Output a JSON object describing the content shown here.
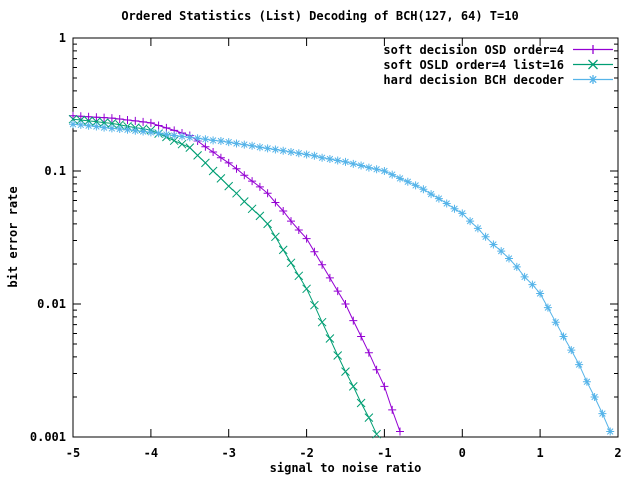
{
  "title": "Ordered Statistics (List) Decoding of BCH(127, 64) T=10",
  "colors": {
    "background": "#ffffff",
    "axis": "#000000",
    "osd": "#9400d3",
    "osld": "#009e73",
    "hard": "#56b4e9"
  },
  "chart_data": {
    "type": "line",
    "title": "Ordered Statistics (List) Decoding of BCH(127, 64) T=10",
    "xlabel": "signal to noise ratio",
    "ylabel": "bit error rate",
    "x_range": [
      -5,
      2
    ],
    "y_range": [
      0.001,
      1
    ],
    "y_scale": "log",
    "grid": false,
    "legend_position": "top-right",
    "x_ticks": {
      "values": [
        -5,
        -4,
        -3,
        -2,
        -1,
        0,
        1,
        2
      ],
      "labels": [
        "-5",
        "-4",
        "-3",
        "-2",
        "-1",
        "0",
        "1",
        "2"
      ]
    },
    "y_ticks": {
      "values": [
        1,
        0.1,
        0.01,
        0.001
      ],
      "labels": [
        "1",
        "0.1",
        "0.01",
        "0.001"
      ]
    },
    "series": [
      {
        "name": "soft decision OSD order=4",
        "color": "#9400d3",
        "marker": "plus",
        "points": [
          [
            -5.0,
            0.26
          ],
          [
            -4.9,
            0.258
          ],
          [
            -4.8,
            0.256
          ],
          [
            -4.7,
            0.254
          ],
          [
            -4.6,
            0.252
          ],
          [
            -4.5,
            0.25
          ],
          [
            -4.4,
            0.246
          ],
          [
            -4.3,
            0.242
          ],
          [
            -4.2,
            0.238
          ],
          [
            -4.1,
            0.234
          ],
          [
            -4.0,
            0.23
          ],
          [
            -3.9,
            0.22
          ],
          [
            -3.8,
            0.211
          ],
          [
            -3.7,
            0.202
          ],
          [
            -3.6,
            0.193
          ],
          [
            -3.5,
            0.185
          ],
          [
            -3.4,
            0.168
          ],
          [
            -3.3,
            0.152
          ],
          [
            -3.2,
            0.139
          ],
          [
            -3.1,
            0.126
          ],
          [
            -3.0,
            0.115
          ],
          [
            -2.9,
            0.104
          ],
          [
            -2.8,
            0.093
          ],
          [
            -2.7,
            0.084
          ],
          [
            -2.6,
            0.076
          ],
          [
            -2.5,
            0.068
          ],
          [
            -2.4,
            0.058
          ],
          [
            -2.3,
            0.05
          ],
          [
            -2.2,
            0.042
          ],
          [
            -2.1,
            0.036
          ],
          [
            -2.0,
            0.031
          ],
          [
            -1.9,
            0.0247
          ],
          [
            -1.8,
            0.0197
          ],
          [
            -1.7,
            0.0157
          ],
          [
            -1.6,
            0.0125
          ],
          [
            -1.5,
            0.01
          ],
          [
            -1.4,
            0.0075
          ],
          [
            -1.3,
            0.0057
          ],
          [
            -1.2,
            0.0043
          ],
          [
            -1.1,
            0.0032
          ],
          [
            -1.0,
            0.0024
          ],
          [
            -0.9,
            0.0016
          ],
          [
            -0.8,
            0.0011
          ]
        ]
      },
      {
        "name": "soft OSLD order=4 list=16",
        "color": "#009e73",
        "marker": "cross",
        "points": [
          [
            -5.0,
            0.245
          ],
          [
            -4.9,
            0.242
          ],
          [
            -4.8,
            0.238
          ],
          [
            -4.7,
            0.235
          ],
          [
            -4.6,
            0.231
          ],
          [
            -4.5,
            0.228
          ],
          [
            -4.4,
            0.223
          ],
          [
            -4.3,
            0.217
          ],
          [
            -4.2,
            0.212
          ],
          [
            -4.1,
            0.208
          ],
          [
            -4.0,
            0.203
          ],
          [
            -3.9,
            0.191
          ],
          [
            -3.8,
            0.18
          ],
          [
            -3.7,
            0.169
          ],
          [
            -3.6,
            0.159
          ],
          [
            -3.5,
            0.15
          ],
          [
            -3.4,
            0.131
          ],
          [
            -3.3,
            0.115
          ],
          [
            -3.2,
            0.1
          ],
          [
            -3.1,
            0.088
          ],
          [
            -3.0,
            0.077
          ],
          [
            -2.9,
            0.068
          ],
          [
            -2.8,
            0.059
          ],
          [
            -2.7,
            0.052
          ],
          [
            -2.6,
            0.046
          ],
          [
            -2.5,
            0.04
          ],
          [
            -2.4,
            0.032
          ],
          [
            -2.3,
            0.0255
          ],
          [
            -2.2,
            0.0204
          ],
          [
            -2.1,
            0.0163
          ],
          [
            -2.0,
            0.013
          ],
          [
            -1.9,
            0.0098
          ],
          [
            -1.8,
            0.0073
          ],
          [
            -1.7,
            0.0055
          ],
          [
            -1.6,
            0.0041
          ],
          [
            -1.5,
            0.0031
          ],
          [
            -1.4,
            0.0024
          ],
          [
            -1.3,
            0.0018
          ],
          [
            -1.2,
            0.0014
          ],
          [
            -1.1,
            0.00105
          ]
        ]
      },
      {
        "name": "hard decision BCH decoder",
        "color": "#56b4e9",
        "marker": "asterisk",
        "points": [
          [
            -5.0,
            0.225
          ],
          [
            -4.9,
            0.222
          ],
          [
            -4.8,
            0.219
          ],
          [
            -4.7,
            0.216
          ],
          [
            -4.6,
            0.212
          ],
          [
            -4.5,
            0.209
          ],
          [
            -4.4,
            0.207
          ],
          [
            -4.3,
            0.204
          ],
          [
            -4.2,
            0.201
          ],
          [
            -4.1,
            0.198
          ],
          [
            -4.0,
            0.195
          ],
          [
            -3.9,
            0.192
          ],
          [
            -3.8,
            0.188
          ],
          [
            -3.7,
            0.185
          ],
          [
            -3.6,
            0.182
          ],
          [
            -3.5,
            0.179
          ],
          [
            -3.4,
            0.176
          ],
          [
            -3.3,
            0.173
          ],
          [
            -3.2,
            0.17
          ],
          [
            -3.1,
            0.168
          ],
          [
            -3.0,
            0.165
          ],
          [
            -2.9,
            0.161
          ],
          [
            -2.8,
            0.158
          ],
          [
            -2.7,
            0.155
          ],
          [
            -2.6,
            0.151
          ],
          [
            -2.5,
            0.148
          ],
          [
            -2.4,
            0.145
          ],
          [
            -2.3,
            0.142
          ],
          [
            -2.2,
            0.139
          ],
          [
            -2.1,
            0.136
          ],
          [
            -2.0,
            0.133
          ],
          [
            -1.9,
            0.13
          ],
          [
            -1.8,
            0.126
          ],
          [
            -1.7,
            0.123
          ],
          [
            -1.6,
            0.12
          ],
          [
            -1.5,
            0.117
          ],
          [
            -1.4,
            0.113
          ],
          [
            -1.3,
            0.11
          ],
          [
            -1.2,
            0.106
          ],
          [
            -1.1,
            0.103
          ],
          [
            -1.0,
            0.1
          ],
          [
            -0.9,
            0.094
          ],
          [
            -0.8,
            0.088
          ],
          [
            -0.7,
            0.083
          ],
          [
            -0.6,
            0.078
          ],
          [
            -0.5,
            0.073
          ],
          [
            -0.4,
            0.067
          ],
          [
            -0.3,
            0.062
          ],
          [
            -0.2,
            0.057
          ],
          [
            -0.1,
            0.052
          ],
          [
            0.0,
            0.048
          ],
          [
            0.1,
            0.042
          ],
          [
            0.2,
            0.037
          ],
          [
            0.3,
            0.032
          ],
          [
            0.4,
            0.028
          ],
          [
            0.5,
            0.025
          ],
          [
            0.6,
            0.022
          ],
          [
            0.7,
            0.019
          ],
          [
            0.8,
            0.016
          ],
          [
            0.9,
            0.014
          ],
          [
            1.0,
            0.012
          ],
          [
            1.1,
            0.0094
          ],
          [
            1.2,
            0.0073
          ],
          [
            1.3,
            0.0057
          ],
          [
            1.4,
            0.0045
          ],
          [
            1.5,
            0.0035
          ],
          [
            1.6,
            0.0026
          ],
          [
            1.7,
            0.002
          ],
          [
            1.8,
            0.0015
          ],
          [
            1.9,
            0.0011
          ]
        ]
      }
    ]
  }
}
